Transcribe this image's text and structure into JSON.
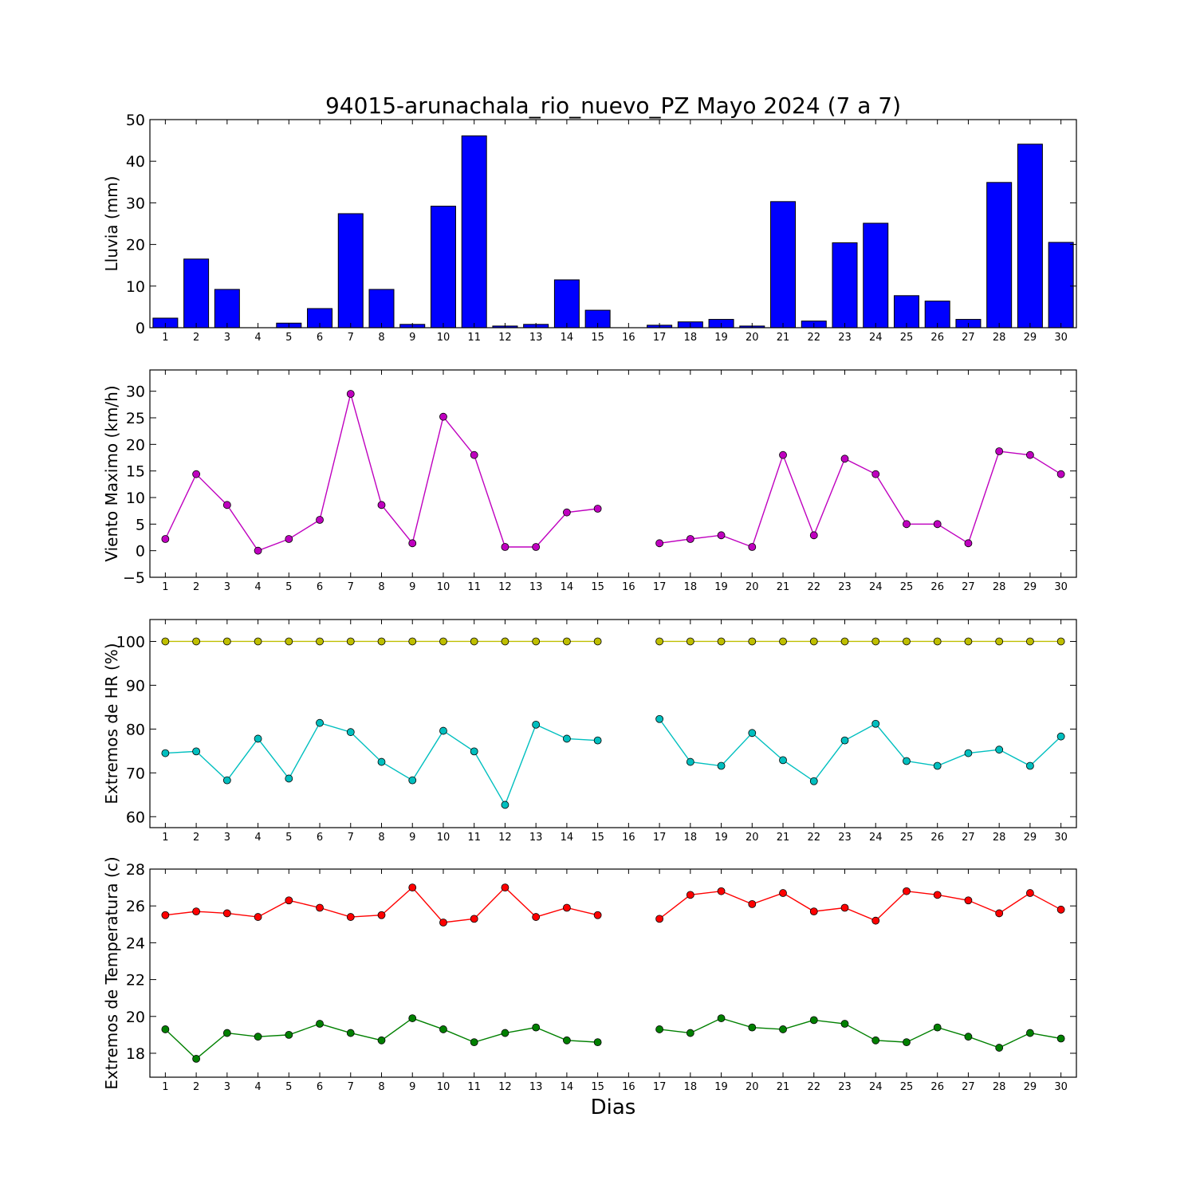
{
  "title": "94015-arunachala_rio_nuevo_PZ Mayo 2024  (7 a 7)",
  "xlabel": "Dias",
  "colors": {
    "rain": "#0000ff",
    "wind": "#bf00bf",
    "hr_max": "#bfbf00",
    "hr_min": "#00bfbf",
    "temp_max": "#ff0000",
    "temp_min": "#008000"
  },
  "chart_data": [
    {
      "type": "bar",
      "title": "94015-arunachala_rio_nuevo_PZ Mayo 2024  (7 a 7)",
      "ylabel": "Lluvia (mm)",
      "ylim": [
        0,
        50
      ],
      "yticks": [
        0,
        10,
        20,
        30,
        40,
        50
      ],
      "categories": [
        1,
        2,
        3,
        4,
        5,
        6,
        7,
        8,
        9,
        10,
        11,
        12,
        13,
        14,
        15,
        16,
        17,
        18,
        19,
        20,
        21,
        22,
        23,
        24,
        25,
        26,
        27,
        28,
        29,
        30
      ],
      "series": [
        {
          "color": "#0000ff",
          "values": [
            2.3,
            16.5,
            9.2,
            0,
            1.1,
            4.6,
            27.4,
            9.2,
            0.8,
            29.2,
            46.1,
            0.4,
            0.8,
            11.5,
            4.2,
            0,
            0.6,
            1.4,
            2.0,
            0.4,
            30.3,
            1.6,
            20.4,
            25.1,
            7.7,
            6.4,
            2.0,
            34.9,
            44.1,
            20.5
          ]
        }
      ]
    },
    {
      "type": "line",
      "ylabel": "Viento Maximo (km/h)",
      "ylim": [
        -5,
        34
      ],
      "yticks": [
        -5,
        0,
        5,
        10,
        15,
        20,
        25,
        30
      ],
      "x": [
        1,
        2,
        3,
        4,
        5,
        6,
        7,
        8,
        9,
        10,
        11,
        12,
        13,
        14,
        15,
        16,
        17,
        18,
        19,
        20,
        21,
        22,
        23,
        24,
        25,
        26,
        27,
        28,
        29,
        30
      ],
      "series": [
        {
          "color": "#bf00bf",
          "values": [
            2.2,
            14.4,
            8.6,
            0.0,
            2.2,
            5.8,
            29.5,
            8.6,
            1.4,
            25.2,
            18.0,
            0.7,
            0.7,
            7.2,
            7.9,
            null,
            1.4,
            2.2,
            2.9,
            0.7,
            18.0,
            2.9,
            17.3,
            14.4,
            5.0,
            5.0,
            1.4,
            18.7,
            18.0,
            14.4
          ]
        }
      ]
    },
    {
      "type": "line",
      "ylabel": "Extremos de HR (%)",
      "ylim": [
        57.5,
        105
      ],
      "yticks": [
        60,
        70,
        80,
        90,
        100
      ],
      "x": [
        1,
        2,
        3,
        4,
        5,
        6,
        7,
        8,
        9,
        10,
        11,
        12,
        13,
        14,
        15,
        16,
        17,
        18,
        19,
        20,
        21,
        22,
        23,
        24,
        25,
        26,
        27,
        28,
        29,
        30
      ],
      "series": [
        {
          "color": "#bfbf00",
          "values": [
            100,
            100,
            100,
            100,
            100,
            100,
            100,
            100,
            100,
            100,
            100,
            100,
            100,
            100,
            100,
            null,
            100,
            100,
            100,
            100,
            100,
            100,
            100,
            100,
            100,
            100,
            100,
            100,
            100,
            100
          ]
        },
        {
          "color": "#00bfbf",
          "values": [
            74.5,
            74.9,
            68.3,
            77.8,
            68.7,
            81.4,
            79.3,
            72.5,
            68.3,
            79.6,
            74.9,
            62.7,
            81.0,
            77.8,
            77.4,
            null,
            82.3,
            72.5,
            71.6,
            79.1,
            72.9,
            68.1,
            77.4,
            81.2,
            72.7,
            71.6,
            74.5,
            75.3,
            71.6,
            78.3
          ]
        }
      ]
    },
    {
      "type": "line",
      "ylabel": "Extremos de Temperatura (c)",
      "xlabel": "Dias",
      "ylim": [
        16.7,
        28
      ],
      "yticks": [
        18,
        20,
        22,
        24,
        26,
        28
      ],
      "x": [
        1,
        2,
        3,
        4,
        5,
        6,
        7,
        8,
        9,
        10,
        11,
        12,
        13,
        14,
        15,
        16,
        17,
        18,
        19,
        20,
        21,
        22,
        23,
        24,
        25,
        26,
        27,
        28,
        29,
        30
      ],
      "series": [
        {
          "color": "#ff0000",
          "values": [
            25.5,
            25.7,
            25.6,
            25.4,
            26.3,
            25.9,
            25.4,
            25.5,
            27.0,
            25.1,
            25.3,
            27.0,
            25.4,
            25.9,
            25.5,
            null,
            25.3,
            26.6,
            26.8,
            26.1,
            26.7,
            25.7,
            25.9,
            25.2,
            26.8,
            26.6,
            26.3,
            25.6,
            26.7,
            25.8
          ]
        },
        {
          "color": "#008000",
          "values": [
            19.3,
            17.7,
            19.1,
            18.9,
            19.0,
            19.6,
            19.1,
            18.7,
            19.9,
            19.3,
            18.6,
            19.1,
            19.4,
            18.7,
            18.6,
            null,
            19.3,
            19.1,
            19.9,
            19.4,
            19.3,
            19.8,
            19.6,
            18.7,
            18.6,
            19.4,
            18.9,
            18.3,
            19.1,
            18.8
          ]
        }
      ]
    }
  ]
}
